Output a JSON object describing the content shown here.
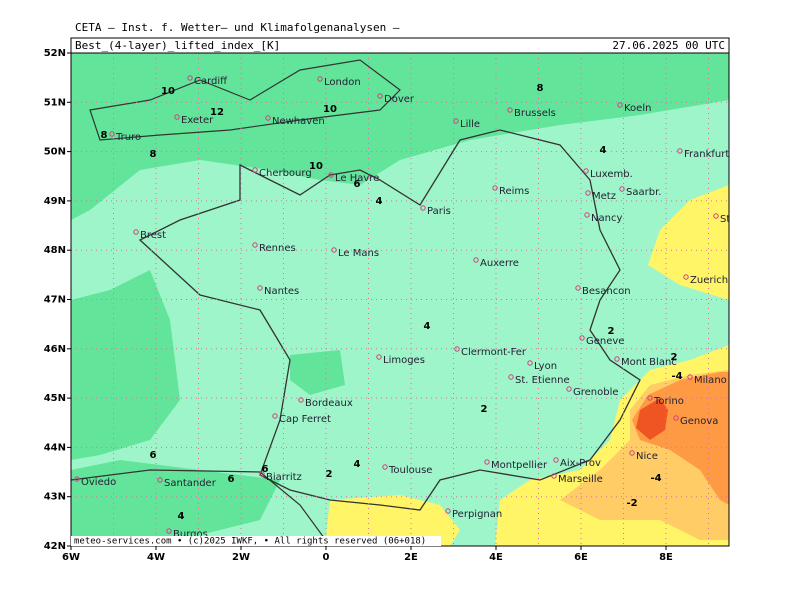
{
  "header": {
    "institute": "CETA – Inst. f. Wetter– und Klimafolgenanalysen –",
    "title": "Best_(4-layer)_lifted_index_[K]",
    "valid": "27.06.2025 00 UTC"
  },
  "footer": "meteo-services.com • (c)2025 IWKF, • All rights reserved (06+018)",
  "axes": {
    "lat": [
      "52N",
      "51N",
      "50N",
      "49N",
      "48N",
      "47N",
      "46N",
      "45N",
      "44N",
      "43N",
      "42N"
    ],
    "lon": [
      "6W",
      "4W",
      "2W",
      "0",
      "2E",
      "4E",
      "6E",
      "8E"
    ]
  },
  "cities": [
    "Cardiff",
    "London",
    "Dover",
    "Exeter",
    "Newhaven",
    "Truro",
    "Brussels",
    "Lille",
    "Koeln",
    "Le Havre",
    "Cherbourg",
    "Reims",
    "Luxemb.",
    "Frankfurt",
    "Paris",
    "Metz",
    "Saarbr.",
    "Brest",
    "Nancy",
    "Stuttgart",
    "Rennes",
    "Le Mans",
    "Auxerre",
    "Zuerich",
    "Nantes",
    "Besancon",
    "Geneve",
    "Limoges",
    "Clermont-Fer",
    "Lyon",
    "St. Etienne",
    "Grenoble",
    "Mont Blanc",
    "Milano",
    "Torino",
    "Bordeaux",
    "Cap Ferret",
    "Genova",
    "Nice",
    "Toulouse",
    "Montpellier",
    "Aix-Prov",
    "Marseille",
    "Biarritz",
    "Oviedo",
    "Santander",
    "Perpignan",
    "Burgos"
  ],
  "contour_labels": [
    10,
    12,
    10,
    8,
    8,
    10,
    6,
    4,
    8,
    4,
    4,
    2,
    2,
    -4,
    2,
    4,
    2,
    6,
    6,
    6,
    4,
    -4,
    -2
  ]
}
